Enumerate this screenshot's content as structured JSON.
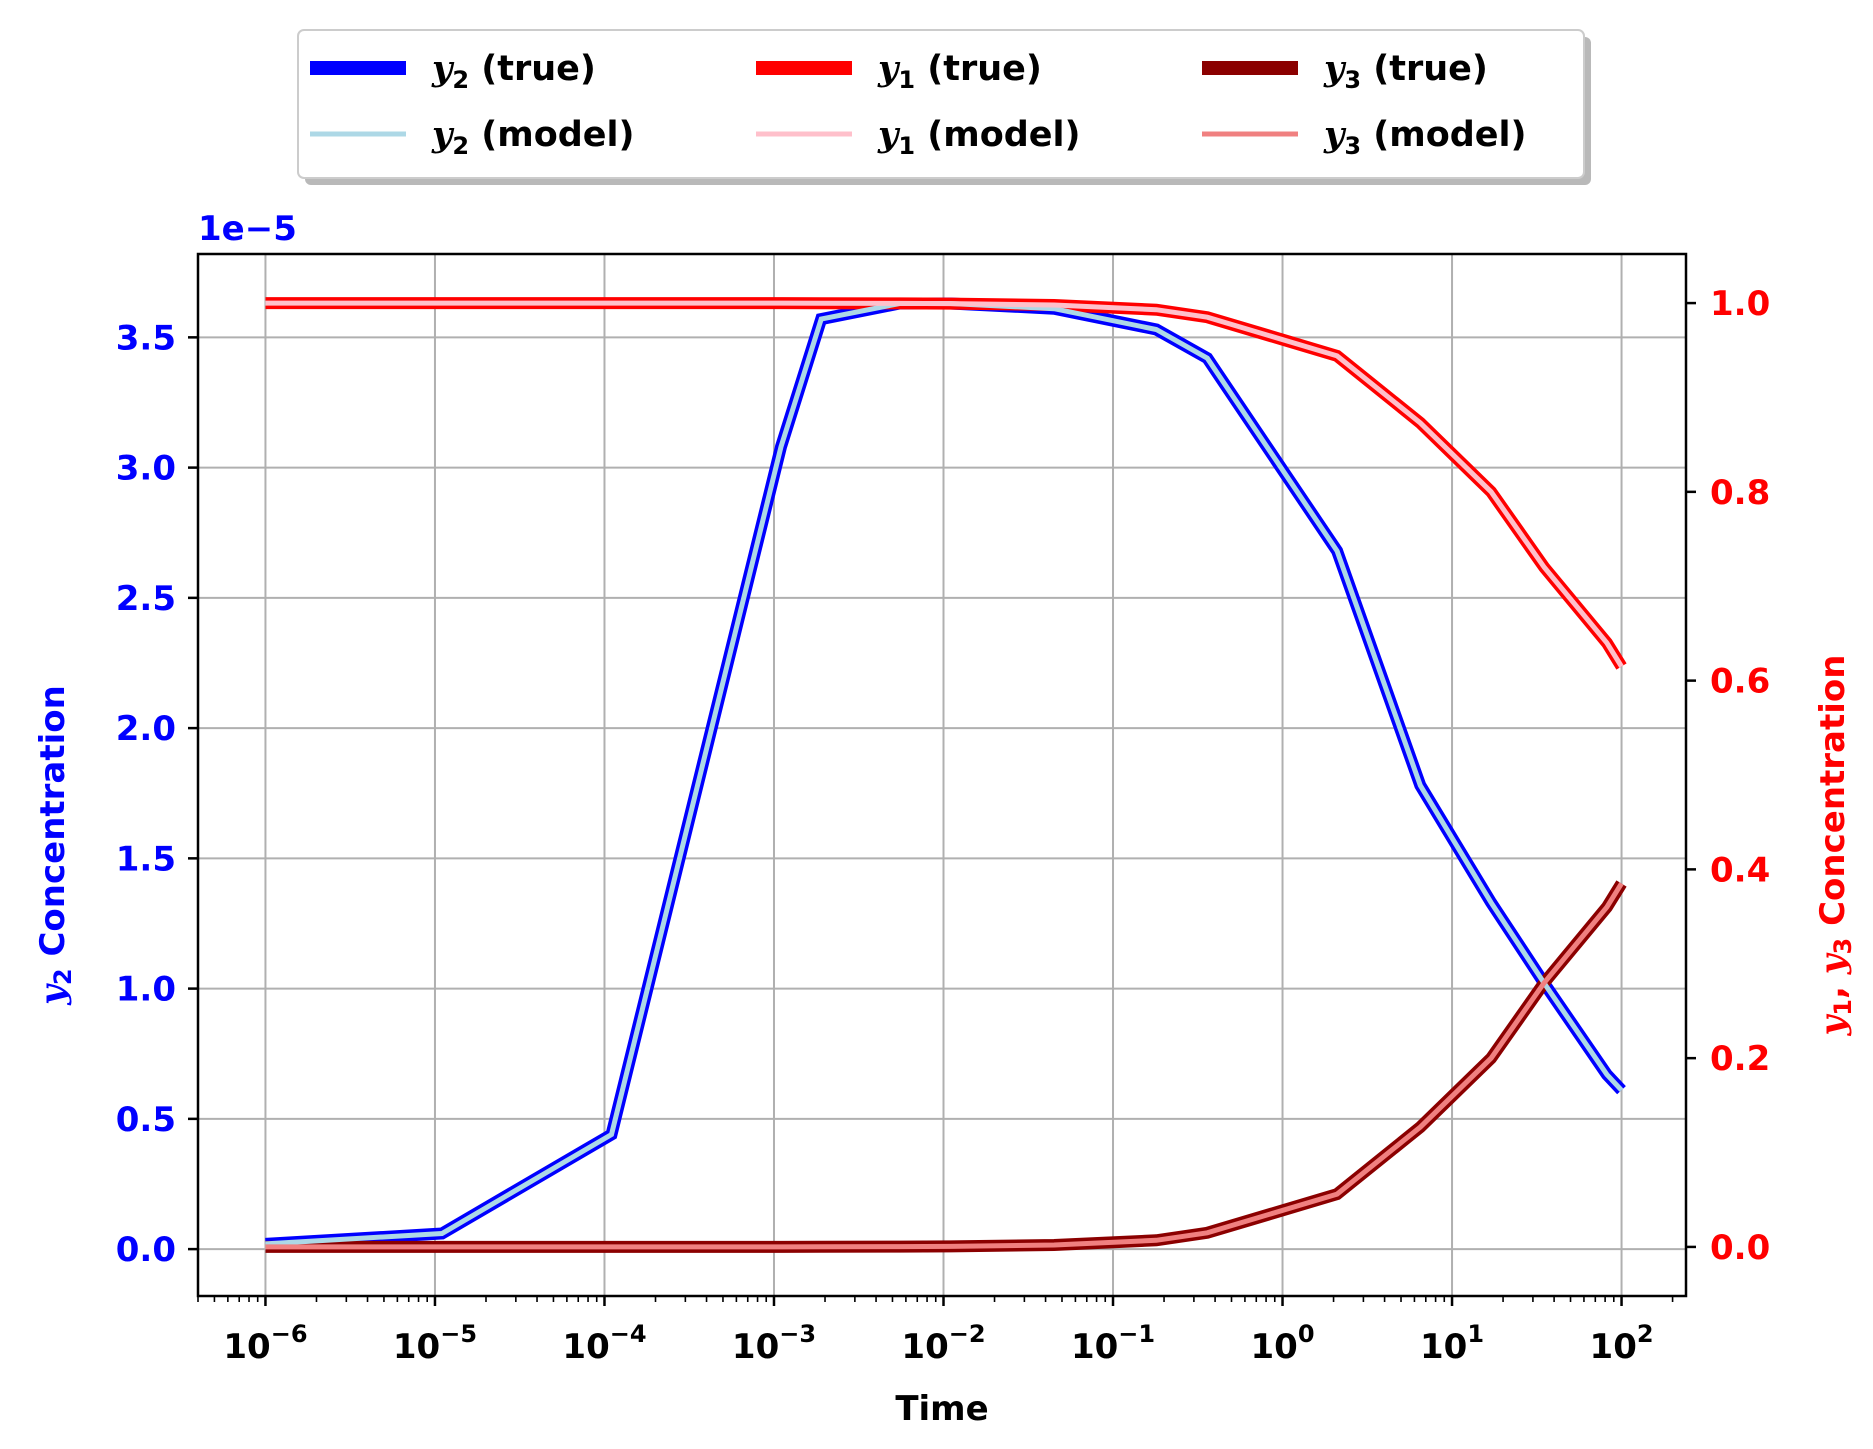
{
  "chart_data": {
    "type": "line",
    "xlabel": "Time",
    "x_scale": "log",
    "xlim": [
      4e-07,
      240
    ],
    "x_ticks": [
      {
        "value": 1e-06,
        "base": "10",
        "exp": "−6"
      },
      {
        "value": 1e-05,
        "base": "10",
        "exp": "−5"
      },
      {
        "value": 0.0001,
        "base": "10",
        "exp": "−4"
      },
      {
        "value": 0.001,
        "base": "10",
        "exp": "−3"
      },
      {
        "value": 0.01,
        "base": "10",
        "exp": "−2"
      },
      {
        "value": 0.1,
        "base": "10",
        "exp": "−1"
      },
      {
        "value": 1,
        "base": "10",
        "exp": "0"
      },
      {
        "value": 10,
        "base": "10",
        "exp": "1"
      },
      {
        "value": 100,
        "base": "10",
        "exp": "2"
      }
    ],
    "left_axis": {
      "label_var": "y",
      "label_sub": "2",
      "label_rest": " Concentration",
      "offset_text": "1e−5",
      "color": "#0000ff",
      "ylim": [
        -0.18,
        3.82
      ],
      "ticks": [
        {
          "value": 0.0,
          "label": "0.0"
        },
        {
          "value": 0.5,
          "label": "0.5"
        },
        {
          "value": 1.0,
          "label": "1.0"
        },
        {
          "value": 1.5,
          "label": "1.5"
        },
        {
          "value": 2.0,
          "label": "2.0"
        },
        {
          "value": 2.5,
          "label": "2.5"
        },
        {
          "value": 3.0,
          "label": "3.0"
        },
        {
          "value": 3.5,
          "label": "3.5"
        }
      ]
    },
    "right_axis": {
      "label_var1": "y",
      "label_sub1": "1",
      "label_sep": ", ",
      "label_var2": "y",
      "label_sub2": "3",
      "label_rest": " Concentration",
      "color": "#ff0000",
      "ylim": [
        -0.052,
        1.052
      ],
      "ticks": [
        {
          "value": 0.0,
          "label": "0.0"
        },
        {
          "value": 0.2,
          "label": "0.2"
        },
        {
          "value": 0.4,
          "label": "0.4"
        },
        {
          "value": 0.6,
          "label": "0.6"
        },
        {
          "value": 0.8,
          "label": "0.8"
        },
        {
          "value": 1.0,
          "label": "1.0"
        }
      ]
    },
    "x": [
      1e-06,
      1.1e-05,
      0.00011,
      0.0011,
      0.0019,
      0.0055,
      0.011,
      0.045,
      0.18,
      0.36,
      2.1,
      6.5,
      17,
      35,
      82,
      100
    ],
    "series": [
      {
        "name_var": "y",
        "name_sub": "2",
        "name_rest": " (true)",
        "axis": "left",
        "color": "#0000ff",
        "role": "true",
        "values": [
          0.02,
          0.06,
          0.44,
          3.08,
          3.57,
          3.63,
          3.63,
          3.61,
          3.53,
          3.42,
          2.68,
          1.78,
          1.33,
          1.02,
          0.67,
          0.61
        ]
      },
      {
        "name_var": "y",
        "name_sub": "2",
        "name_rest": " (model)",
        "axis": "left",
        "color": "#add8e6",
        "role": "model",
        "values": [
          0.02,
          0.06,
          0.44,
          3.08,
          3.57,
          3.63,
          3.63,
          3.61,
          3.53,
          3.42,
          2.68,
          1.78,
          1.33,
          1.02,
          0.67,
          0.61
        ]
      },
      {
        "name_var": "y",
        "name_sub": "1",
        "name_rest": " (true)",
        "axis": "right",
        "color": "#ff0000",
        "role": "true",
        "values": [
          1.0,
          1.0,
          1.0,
          1.0,
          0.9999,
          0.9997,
          0.9995,
          0.998,
          0.993,
          0.985,
          0.944,
          0.873,
          0.8,
          0.72,
          0.64,
          0.615
        ]
      },
      {
        "name_var": "y",
        "name_sub": "1",
        "name_rest": " (model)",
        "axis": "right",
        "color": "#ffc0cb",
        "role": "model",
        "values": [
          1.0,
          1.0,
          1.0,
          1.0,
          0.9999,
          0.9997,
          0.9995,
          0.998,
          0.993,
          0.985,
          0.944,
          0.873,
          0.8,
          0.72,
          0.64,
          0.615
        ]
      },
      {
        "name_var": "y",
        "name_sub": "3",
        "name_rest": " (true)",
        "axis": "right",
        "color": "#8b0000",
        "role": "true",
        "values": [
          0.0,
          0.0,
          0.0,
          0.0,
          0.0001,
          0.0003,
          0.0005,
          0.002,
          0.007,
          0.015,
          0.056,
          0.127,
          0.2,
          0.28,
          0.36,
          0.385
        ]
      },
      {
        "name_var": "y",
        "name_sub": "3",
        "name_rest": " (model)",
        "axis": "right",
        "color": "#f08080",
        "role": "model",
        "values": [
          0.0,
          0.0,
          0.0,
          0.0,
          0.0001,
          0.0003,
          0.0005,
          0.002,
          0.007,
          0.015,
          0.056,
          0.127,
          0.2,
          0.28,
          0.36,
          0.385
        ]
      }
    ],
    "legend": {
      "placement": "upper-center-outside",
      "columns": 3
    },
    "grid": true
  }
}
